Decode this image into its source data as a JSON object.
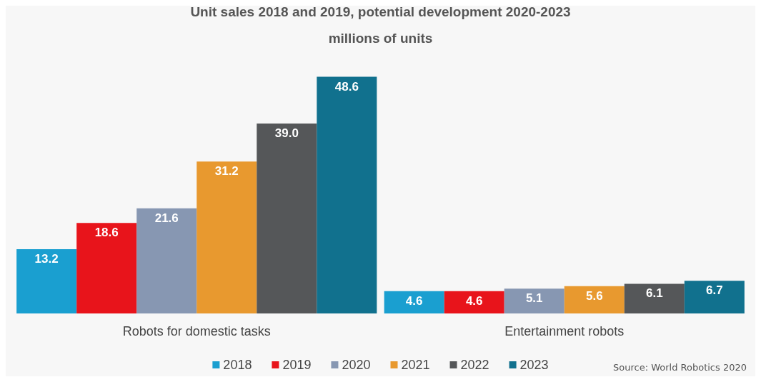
{
  "chart_data": {
    "type": "bar",
    "title": "Unit sales 2018 and 2019, potential development 2020-2023",
    "subtitle": "millions of units",
    "categories": [
      "Robots for domestic tasks",
      "Entertainment robots"
    ],
    "series": [
      {
        "name": "2018",
        "color": "#1a9fd0",
        "values": [
          13.2,
          4.6
        ],
        "value_labels": [
          "13.2",
          "4.6"
        ]
      },
      {
        "name": "2019",
        "color": "#e8141b",
        "values": [
          18.6,
          4.6
        ],
        "value_labels": [
          "18.6",
          "4.6"
        ]
      },
      {
        "name": "2020",
        "color": "#8797b2",
        "values": [
          21.6,
          5.1
        ],
        "value_labels": [
          "21.6",
          "5.1"
        ]
      },
      {
        "name": "2021",
        "color": "#e8992f",
        "values": [
          31.2,
          5.6
        ],
        "value_labels": [
          "31.2",
          "5.6"
        ]
      },
      {
        "name": "2022",
        "color": "#555759",
        "values": [
          39,
          6.1
        ],
        "value_labels": [
          "39.0",
          "6.1"
        ]
      },
      {
        "name": "2023",
        "color": "#11718e",
        "values": [
          48.6,
          6.7
        ],
        "value_labels": [
          "48.6",
          "6.7"
        ]
      }
    ],
    "legend": "bottom",
    "grid": false,
    "annotations": [
      "Source: World Robotics 2020"
    ]
  }
}
